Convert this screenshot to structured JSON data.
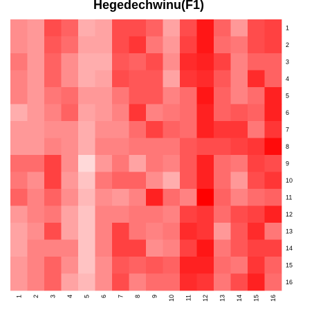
{
  "chart_data": {
    "type": "heatmap",
    "title": "Hegedechwinu(F1)",
    "x_labels": [
      "1",
      "2",
      "3",
      "4",
      "5",
      "6",
      "7",
      "8",
      "9",
      "10",
      "11",
      "12",
      "13",
      "14",
      "15",
      "16"
    ],
    "y_labels": [
      "1",
      "2",
      "3",
      "4",
      "5",
      "6",
      "7",
      "8",
      "9",
      "10",
      "11",
      "12",
      "13",
      "14",
      "15",
      "16"
    ],
    "value_range": [
      0,
      1
    ],
    "color_low": "#ffffff",
    "color_high": "#ff0000",
    "grid": false,
    "values": [
      [
        0.35,
        0.3,
        0.65,
        0.55,
        0.2,
        0.25,
        0.65,
        0.65,
        0.55,
        0.25,
        0.65,
        0.9,
        0.55,
        0.3,
        0.65,
        0.7
      ],
      [
        0.35,
        0.3,
        0.6,
        0.5,
        0.25,
        0.25,
        0.65,
        0.75,
        0.45,
        0.3,
        0.7,
        0.9,
        0.5,
        0.45,
        0.65,
        0.7
      ],
      [
        0.45,
        0.3,
        0.55,
        0.35,
        0.2,
        0.2,
        0.6,
        0.55,
        0.65,
        0.35,
        0.8,
        0.85,
        0.7,
        0.4,
        0.55,
        0.55
      ],
      [
        0.4,
        0.3,
        0.55,
        0.35,
        0.2,
        0.25,
        0.65,
        0.6,
        0.6,
        0.25,
        0.75,
        0.8,
        0.6,
        0.4,
        0.8,
        0.55
      ],
      [
        0.4,
        0.3,
        0.45,
        0.5,
        0.3,
        0.3,
        0.45,
        0.6,
        0.6,
        0.4,
        0.5,
        0.9,
        0.55,
        0.4,
        0.5,
        0.85
      ],
      [
        0.2,
        0.3,
        0.4,
        0.55,
        0.25,
        0.3,
        0.4,
        0.75,
        0.4,
        0.45,
        0.5,
        0.85,
        0.55,
        0.6,
        0.55,
        0.85
      ],
      [
        0.3,
        0.3,
        0.35,
        0.35,
        0.2,
        0.35,
        0.35,
        0.5,
        0.7,
        0.55,
        0.5,
        0.85,
        0.75,
        0.75,
        0.45,
        0.75
      ],
      [
        0.3,
        0.3,
        0.4,
        0.35,
        0.2,
        0.4,
        0.4,
        0.45,
        0.45,
        0.45,
        0.6,
        0.65,
        0.65,
        0.7,
        0.75,
        0.95
      ],
      [
        0.5,
        0.5,
        0.7,
        0.35,
        0.0,
        0.3,
        0.45,
        0.25,
        0.45,
        0.4,
        0.6,
        0.85,
        0.5,
        0.45,
        0.7,
        0.65
      ],
      [
        0.45,
        0.35,
        0.7,
        0.3,
        0.1,
        0.45,
        0.55,
        0.55,
        0.35,
        0.2,
        0.6,
        0.85,
        0.5,
        0.3,
        0.65,
        0.75
      ],
      [
        0.55,
        0.4,
        0.55,
        0.35,
        0.15,
        0.35,
        0.3,
        0.4,
        0.85,
        0.5,
        0.4,
        1.0,
        0.55,
        0.4,
        0.5,
        0.55
      ],
      [
        0.3,
        0.4,
        0.45,
        0.25,
        0.1,
        0.4,
        0.4,
        0.45,
        0.45,
        0.4,
        0.7,
        0.75,
        0.5,
        0.65,
        0.7,
        0.85
      ],
      [
        0.25,
        0.35,
        0.65,
        0.25,
        0.1,
        0.4,
        0.7,
        0.45,
        0.4,
        0.45,
        0.8,
        0.75,
        0.3,
        0.6,
        0.8,
        0.45
      ],
      [
        0.25,
        0.4,
        0.4,
        0.4,
        0.1,
        0.4,
        0.7,
        0.7,
        0.35,
        0.4,
        0.7,
        0.9,
        0.45,
        0.6,
        0.7,
        0.7
      ],
      [
        0.3,
        0.4,
        0.55,
        0.35,
        0.1,
        0.35,
        0.6,
        0.55,
        0.6,
        0.55,
        0.85,
        0.85,
        0.5,
        0.45,
        0.75,
        0.55
      ],
      [
        0.3,
        0.4,
        0.55,
        0.25,
        0.15,
        0.35,
        0.65,
        0.4,
        0.5,
        0.5,
        0.8,
        0.75,
        0.45,
        0.65,
        0.85,
        0.5
      ]
    ]
  }
}
